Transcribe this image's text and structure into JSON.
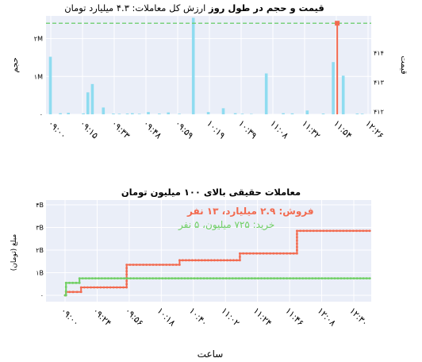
{
  "chart_data": [
    {
      "type": "bar+line",
      "title_bold": "قیمت و حجم در طول روز",
      "title_rest": " ارزش کل معاملات: ۴.۳ میلیارد تومان",
      "left_axis_label": "حجم",
      "right_axis_label": "قیمت",
      "left_ticks": [
        "۲M",
        "۱M",
        "۰"
      ],
      "left_tick_values": [
        2000000,
        1000000,
        0
      ],
      "right_ticks": [
        "۴۱۴",
        "۴۱۳",
        "۴۱۲"
      ],
      "right_tick_values": [
        414,
        413,
        412
      ],
      "x_ticks": [
        "۰۹:۰۰",
        "۰۹:۱۵",
        "۰۹:۳۳",
        "۰۹:۴۸",
        "۰۹:۵۹",
        "۱۰:۱۹",
        "۱۰:۳۹",
        "۱۱:۰۸",
        "۱۱:۳۲",
        "۱۱:۵۴",
        "۱۲:۲۶"
      ],
      "volume_bars": {
        "x": [
          0.2,
          1.2,
          2.0,
          3.5,
          3.95,
          4.4,
          5.5,
          6.5,
          7.1,
          7.9,
          8.4,
          9.1,
          10.0,
          11.1,
          12.0,
          13.1,
          14.5,
          16.0,
          17.5,
          18.7,
          19.4,
          20.3,
          21.8,
          23.5,
          24.4,
          25.9,
          27.5,
          28.5,
          29.5,
          30.9,
          31.4
        ],
        "values": [
          1520000,
          30000,
          40000,
          25000,
          580000,
          800000,
          180000,
          20000,
          15000,
          20000,
          30000,
          15000,
          60000,
          20000,
          50000,
          15000,
          2550000,
          60000,
          160000,
          30000,
          15000,
          10000,
          1080000,
          30000,
          25000,
          100000,
          20000,
          1380000,
          1020000,
          20000,
          15000
        ]
      },
      "price_line": {
        "x": [
          28.9,
          28.9
        ],
        "values": [
          411.9,
          415.0
        ]
      },
      "dashed_reference": 415.0,
      "colors": {
        "volume": "#8fdcf0",
        "price": "#f26a4f",
        "reference": "#66cc66",
        "plot_bg": "#eaeef8"
      }
    },
    {
      "type": "step",
      "title": "معاملات حقیقی بالای ۱۰۰ میلیون تومان",
      "xlabel": "ساعت",
      "ylabel": "مبلغ (تومان)",
      "y_ticks": [
        "۴B",
        "۳B",
        "۲B",
        "۱B",
        "۰"
      ],
      "y_tick_values": [
        4,
        3,
        2,
        1,
        0
      ],
      "x_ticks": [
        "۰۹:۰۰",
        "۰۹:۲۴",
        "۰۹:۵۶",
        "۱۰:۱۸",
        "۱۰:۴۰",
        "۱۱:۰۲",
        "۱۱:۲۴",
        "۱۱:۴۶",
        "۱۲:۰۸",
        "۱۲:۳۰"
      ],
      "legend_sell": "فروش: ۲.۹ میلیارد، ۱۳ نفر",
      "legend_buy": "خرید: ۷۲۵ میلیون، ۵ نفر",
      "series": [
        {
          "name": "فروش",
          "color": "#f26a4f",
          "x": [
            0.0,
            0.03,
            0.25,
            0.5,
            1.92,
            3.57,
            5.45,
            7.23,
            9.5
          ],
          "values": [
            0.0,
            0.15,
            0.15,
            0.35,
            1.35,
            1.55,
            1.85,
            2.85,
            2.85
          ]
        },
        {
          "name": "خرید",
          "color": "#6fcf63",
          "x": [
            0.0,
            0.03,
            0.45,
            9.5
          ],
          "values": [
            0.0,
            0.55,
            0.75,
            0.75
          ]
        }
      ],
      "colors": {
        "plot_bg": "#eaeef8"
      }
    }
  ]
}
